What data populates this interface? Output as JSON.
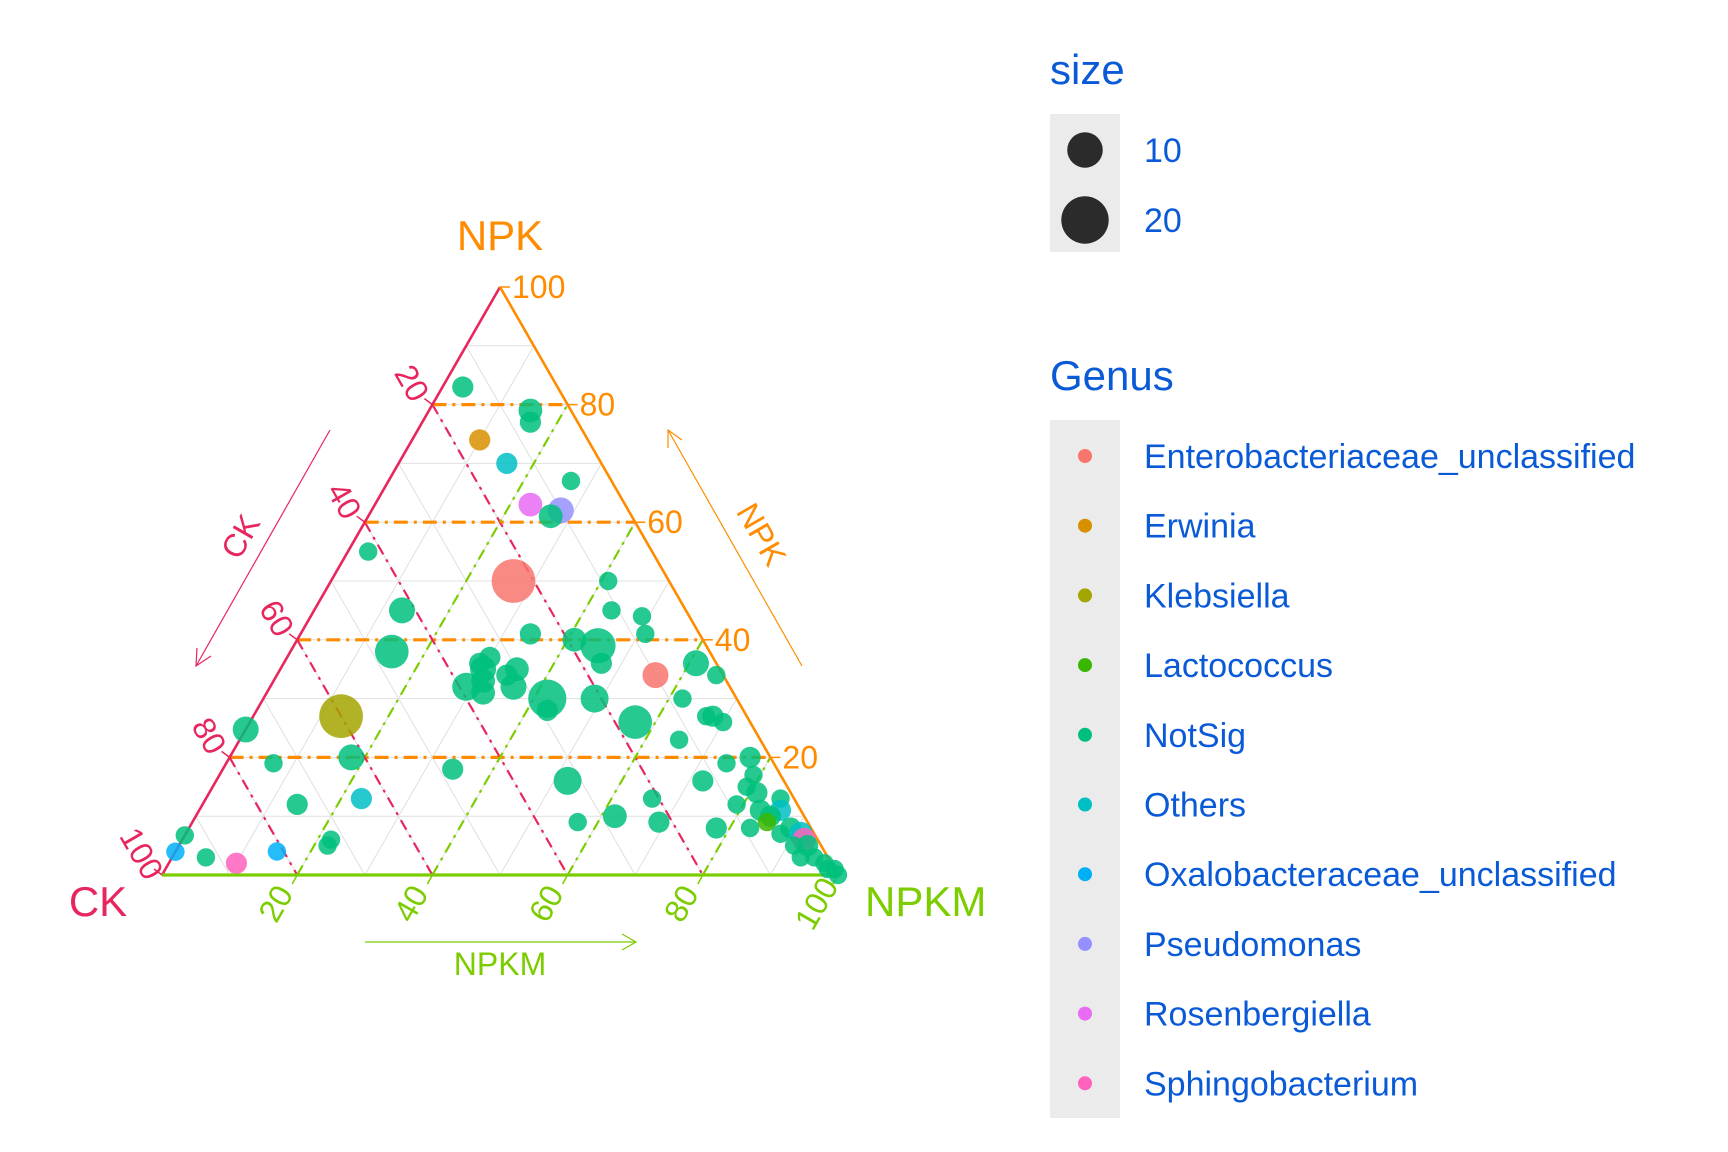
{
  "chart_data": {
    "type": "scatter",
    "subtype": "ternary",
    "axes": {
      "top": {
        "name": "NPK",
        "arrow_label": "NPK",
        "color": "#FF8C00"
      },
      "left": {
        "name": "CK",
        "arrow_label": "CK",
        "color": "#E8265E"
      },
      "right": {
        "name": "NPKM",
        "arrow_label": "NPKM",
        "color": "#7CCD00"
      }
    },
    "ticks": [
      20,
      40,
      60,
      80,
      100
    ],
    "grid": true,
    "highlight_levels": [
      20,
      40,
      60,
      80
    ],
    "legend_position": "right",
    "size_legend": {
      "title": "size",
      "values": [
        10,
        20
      ]
    },
    "genus_legend": {
      "title": "Genus",
      "items": [
        {
          "name": "Enterobacteriaceae_unclassified",
          "color": "#F8766D"
        },
        {
          "name": "Erwinia",
          "color": "#D89000"
        },
        {
          "name": "Klebsiella",
          "color": "#A3A500"
        },
        {
          "name": "Lactococcus",
          "color": "#39B600"
        },
        {
          "name": "NotSig",
          "color": "#00BF7D"
        },
        {
          "name": "Others",
          "color": "#00BFC4"
        },
        {
          "name": "Oxalobacteraceae_unclassified",
          "color": "#00B0F6"
        },
        {
          "name": "Pseudomonas",
          "color": "#9590FF"
        },
        {
          "name": "Rosenbergiella",
          "color": "#E76BF3"
        },
        {
          "name": "Sphingobacterium",
          "color": "#FF62BC"
        }
      ]
    },
    "points": [
      {
        "ck": 14,
        "npk": 83,
        "npkm": 3,
        "genus": "NotSig",
        "size": 4
      },
      {
        "ck": 6,
        "npk": 79,
        "npkm": 15,
        "genus": "NotSig",
        "size": 5
      },
      {
        "ck": 7,
        "npk": 77,
        "npkm": 16,
        "genus": "NotSig",
        "size": 4
      },
      {
        "ck": 16,
        "npk": 74,
        "npkm": 10,
        "genus": "Erwinia",
        "size": 4
      },
      {
        "ck": 14,
        "npk": 70,
        "npkm": 16,
        "genus": "Others",
        "size": 4
      },
      {
        "ck": 6,
        "npk": 67,
        "npkm": 27,
        "genus": "NotSig",
        "size": 3
      },
      {
        "ck": 14,
        "npk": 63,
        "npkm": 23,
        "genus": "Rosenbergiella",
        "size": 5
      },
      {
        "ck": 10,
        "npk": 62,
        "npkm": 28,
        "genus": "Pseudomonas",
        "size": 6
      },
      {
        "ck": 12,
        "npk": 61,
        "npkm": 27,
        "genus": "NotSig",
        "size": 5
      },
      {
        "ck": 42,
        "npk": 55,
        "npkm": 3,
        "genus": "NotSig",
        "size": 3
      },
      {
        "ck": 23,
        "npk": 50,
        "npkm": 27,
        "genus": "Enterobacteriaceae_unclassified",
        "size": 17
      },
      {
        "ck": 9,
        "npk": 50,
        "npkm": 41,
        "genus": "NotSig",
        "size": 3
      },
      {
        "ck": 42,
        "npk": 45,
        "npkm": 13,
        "genus": "NotSig",
        "size": 6
      },
      {
        "ck": 11,
        "npk": 45,
        "npkm": 44,
        "genus": "NotSig",
        "size": 3
      },
      {
        "ck": 7,
        "npk": 44,
        "npkm": 49,
        "genus": "NotSig",
        "size": 3
      },
      {
        "ck": 25,
        "npk": 41,
        "npkm": 34,
        "genus": "NotSig",
        "size": 4
      },
      {
        "ck": 19,
        "npk": 40,
        "npkm": 41,
        "genus": "NotSig",
        "size": 5
      },
      {
        "ck": 16,
        "npk": 39,
        "npkm": 45,
        "genus": "NotSig",
        "size": 11
      },
      {
        "ck": 47,
        "npk": 38,
        "npkm": 15,
        "genus": "NotSig",
        "size": 10
      },
      {
        "ck": 8,
        "npk": 41,
        "npkm": 51,
        "genus": "NotSig",
        "size": 3
      },
      {
        "ck": 33,
        "npk": 37,
        "npkm": 30,
        "genus": "NotSig",
        "size": 4
      },
      {
        "ck": 35,
        "npk": 36,
        "npkm": 29,
        "genus": "NotSig",
        "size": 4
      },
      {
        "ck": 17,
        "npk": 36,
        "npkm": 47,
        "genus": "NotSig",
        "size": 4
      },
      {
        "ck": 3,
        "npk": 36,
        "npkm": 61,
        "genus": "NotSig",
        "size": 6
      },
      {
        "ck": 35,
        "npk": 35,
        "npkm": 30,
        "genus": "NotSig",
        "size": 6
      },
      {
        "ck": 30,
        "npk": 35,
        "npkm": 35,
        "genus": "NotSig",
        "size": 5
      },
      {
        "ck": 10,
        "npk": 34,
        "npkm": 56,
        "genus": "Enterobacteriaceae_unclassified",
        "size": 6
      },
      {
        "ck": 32,
        "npk": 34,
        "npkm": 34,
        "genus": "NotSig",
        "size": 4
      },
      {
        "ck": 1,
        "npk": 34,
        "npkm": 65,
        "genus": "NotSig",
        "size": 3
      },
      {
        "ck": 36,
        "npk": 33,
        "npkm": 31,
        "genus": "NotSig",
        "size": 5
      },
      {
        "ck": 39,
        "npk": 32,
        "npkm": 29,
        "genus": "NotSig",
        "size": 7
      },
      {
        "ck": 37,
        "npk": 31,
        "npkm": 32,
        "genus": "NotSig",
        "size": 5
      },
      {
        "ck": 32,
        "npk": 32,
        "npkm": 36,
        "genus": "NotSig",
        "size": 6
      },
      {
        "ck": 28,
        "npk": 30,
        "npkm": 42,
        "genus": "NotSig",
        "size": 13
      },
      {
        "ck": 29,
        "npk": 28,
        "npkm": 43,
        "genus": "NotSig",
        "size": 4
      },
      {
        "ck": 21,
        "npk": 30,
        "npkm": 49,
        "genus": "NotSig",
        "size": 7
      },
      {
        "ck": 8,
        "npk": 30,
        "npkm": 62,
        "genus": "NotSig",
        "size": 3
      },
      {
        "ck": 6,
        "npk": 27,
        "npkm": 67,
        "genus": "NotSig",
        "size": 3
      },
      {
        "ck": 60,
        "npk": 27,
        "npkm": 13,
        "genus": "Klebsiella",
        "size": 17
      },
      {
        "ck": 17,
        "npk": 26,
        "npkm": 57,
        "genus": "NotSig",
        "size": 10
      },
      {
        "ck": 5,
        "npk": 27,
        "npkm": 68,
        "genus": "NotSig",
        "size": 4
      },
      {
        "ck": 4,
        "npk": 26,
        "npkm": 70,
        "genus": "NotSig",
        "size": 3
      },
      {
        "ck": 76,
        "npk": 25,
        "npkm": -1,
        "genus": "NotSig",
        "size": 6
      },
      {
        "ck": 12,
        "npk": 23,
        "npkm": 65,
        "genus": "NotSig",
        "size": 3
      },
      {
        "ck": 62,
        "npk": 20,
        "npkm": 18,
        "genus": "NotSig",
        "size": 6
      },
      {
        "ck": 74,
        "npk": 19,
        "npkm": 7,
        "genus": "NotSig",
        "size": 3
      },
      {
        "ck": 48,
        "npk": 18,
        "npkm": 34,
        "genus": "NotSig",
        "size": 4
      },
      {
        "ck": 7,
        "npk": 19,
        "npkm": 74,
        "genus": "NotSig",
        "size": 3
      },
      {
        "ck": 3,
        "npk": 20,
        "npkm": 77,
        "genus": "NotSig",
        "size": 4
      },
      {
        "ck": 32,
        "npk": 16,
        "npkm": 52,
        "genus": "NotSig",
        "size": 7
      },
      {
        "ck": 12,
        "npk": 16,
        "npkm": 72,
        "genus": "NotSig",
        "size": 4
      },
      {
        "ck": 4,
        "npk": 17,
        "npkm": 79,
        "genus": "NotSig",
        "size": 3
      },
      {
        "ck": 6,
        "npk": 15,
        "npkm": 79,
        "genus": "NotSig",
        "size": 3
      },
      {
        "ck": 64,
        "npk": 13,
        "npkm": 23,
        "genus": "Others",
        "size": 4
      },
      {
        "ck": 74,
        "npk": 12,
        "npkm": 14,
        "genus": "NotSig",
        "size": 4
      },
      {
        "ck": 21,
        "npk": 13,
        "npkm": 66,
        "genus": "NotSig",
        "size": 3
      },
      {
        "ck": 5,
        "npk": 14,
        "npkm": 81,
        "genus": "NotSig",
        "size": 4
      },
      {
        "ck": 9,
        "npk": 12,
        "npkm": 79,
        "genus": "NotSig",
        "size": 3
      },
      {
        "ck": 2,
        "npk": 13,
        "npkm": 85,
        "genus": "NotSig",
        "size": 3
      },
      {
        "ck": 6,
        "npk": 11,
        "npkm": 83,
        "genus": "NotSig",
        "size": 4
      },
      {
        "ck": 3,
        "npk": 11,
        "npkm": 86,
        "genus": "Others",
        "size": 4
      },
      {
        "ck": 28,
        "npk": 10,
        "npkm": 62,
        "genus": "NotSig",
        "size": 5
      },
      {
        "ck": 5,
        "npk": 10,
        "npkm": 85,
        "genus": "NotSig",
        "size": 4
      },
      {
        "ck": 34,
        "npk": 9,
        "npkm": 57,
        "genus": "NotSig",
        "size": 3
      },
      {
        "ck": 6,
        "npk": 9,
        "npkm": 85,
        "genus": "Lactococcus",
        "size": 3
      },
      {
        "ck": 9,
        "npk": 8,
        "npkm": 83,
        "genus": "NotSig",
        "size": 3
      },
      {
        "ck": 14,
        "npk": 8,
        "npkm": 78,
        "genus": "NotSig",
        "size": 4
      },
      {
        "ck": 22,
        "npk": 9,
        "npkm": 69,
        "genus": "NotSig",
        "size": 4
      },
      {
        "ck": 3,
        "npk": 8,
        "npkm": 89,
        "genus": "NotSig",
        "size": 4
      },
      {
        "ck": 5,
        "npk": 7,
        "npkm": 88,
        "genus": "NotSig",
        "size": 3
      },
      {
        "ck": 97,
        "npk": 7,
        "npkm": -4,
        "genus": "NotSig",
        "size": 3
      },
      {
        "ck": 73,
        "npk": 5,
        "npkm": 22,
        "genus": "NotSig",
        "size": 3
      },
      {
        "ck": 72,
        "npk": 6,
        "npkm": 22,
        "genus": "NotSig",
        "size": 3
      },
      {
        "ck": 2,
        "npk": 7,
        "npkm": 91,
        "genus": "Others",
        "size": 5
      },
      {
        "ck": 2,
        "npk": 6,
        "npkm": 92,
        "genus": "Sphingobacterium",
        "size": 5
      },
      {
        "ck": 97,
        "npk": 4,
        "npkm": -1,
        "genus": "Oxalobacteraceae_unclassified",
        "size": 3
      },
      {
        "ck": 81,
        "npk": 4,
        "npkm": 15,
        "genus": "Oxalobacteraceae_unclassified",
        "size": 3
      },
      {
        "ck": 92,
        "npk": 3,
        "npkm": 5,
        "genus": "NotSig",
        "size": 3
      },
      {
        "ck": 2,
        "npk": 5,
        "npkm": 93,
        "genus": "NotSig",
        "size": 4
      },
      {
        "ck": 4,
        "npk": 5,
        "npkm": 91,
        "genus": "NotSig",
        "size": 3
      },
      {
        "ck": 4,
        "npk": 3,
        "npkm": 93,
        "genus": "NotSig",
        "size": 3
      },
      {
        "ck": 2,
        "npk": 3,
        "npkm": 95,
        "genus": "NotSig",
        "size": 3
      },
      {
        "ck": 88,
        "npk": 2,
        "npkm": 10,
        "genus": "Sphingobacterium",
        "size": 4
      },
      {
        "ck": 1,
        "npk": 2,
        "npkm": 97,
        "genus": "NotSig",
        "size": 3
      },
      {
        "ck": 0,
        "npk": 1,
        "npkm": 99,
        "genus": "NotSig",
        "size": 3
      },
      {
        "ck": 1,
        "npk": 1,
        "npkm": 98,
        "genus": "NotSig",
        "size": 3
      },
      {
        "ck": 0,
        "npk": 0,
        "npkm": 100,
        "genus": "NotSig",
        "size": 3
      }
    ]
  }
}
